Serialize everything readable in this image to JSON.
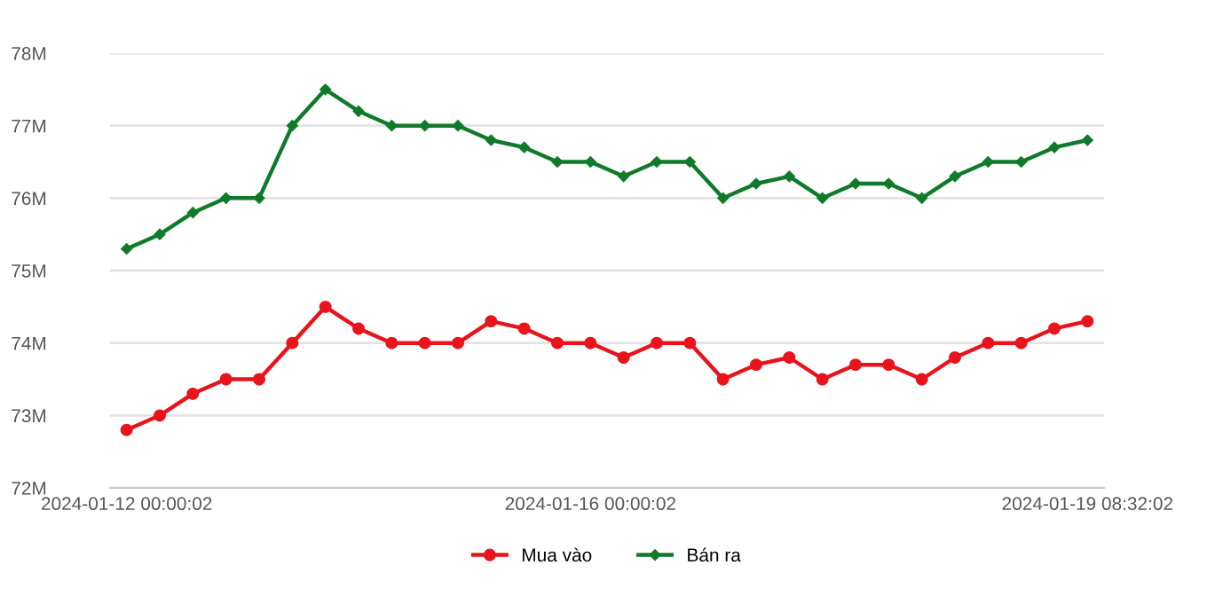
{
  "chart_data": {
    "type": "line",
    "categories": [
      "2024-01-12 00:00:02",
      null,
      null,
      null,
      null,
      null,
      null,
      null,
      null,
      null,
      null,
      null,
      null,
      null,
      "2024-01-16 00:00:02",
      null,
      null,
      null,
      null,
      null,
      null,
      null,
      null,
      null,
      null,
      null,
      null,
      null,
      null,
      "2024-01-19 08:32:02"
    ],
    "series": [
      {
        "name": "Mua vào",
        "color": "#e8131b",
        "marker": "circle",
        "values": [
          72.8,
          73.0,
          73.3,
          73.5,
          73.5,
          74.0,
          74.5,
          74.2,
          74.0,
          74.0,
          74.0,
          74.3,
          74.2,
          74.0,
          74.0,
          73.8,
          74.0,
          74.0,
          73.5,
          73.7,
          73.8,
          73.5,
          73.7,
          73.7,
          73.5,
          73.8,
          74.0,
          74.0,
          74.2,
          74.3
        ]
      },
      {
        "name": "Bán ra",
        "color": "#0f7a2a",
        "marker": "diamond",
        "values": [
          75.3,
          75.5,
          75.8,
          76.0,
          76.0,
          77.0,
          77.5,
          77.2,
          77.0,
          77.0,
          77.0,
          76.8,
          76.7,
          76.5,
          76.5,
          76.3,
          76.5,
          76.5,
          76.0,
          76.2,
          76.3,
          76.0,
          76.2,
          76.2,
          76.0,
          76.3,
          76.5,
          76.5,
          76.7,
          76.8
        ]
      }
    ],
    "ylim": [
      72,
      78
    ],
    "yticks": [
      {
        "value": 72,
        "label": "72M"
      },
      {
        "value": 73,
        "label": "73M"
      },
      {
        "value": 74,
        "label": "74M"
      },
      {
        "value": 75,
        "label": "75M"
      },
      {
        "value": 76,
        "label": "76M"
      },
      {
        "value": 77,
        "label": "77M"
      },
      {
        "value": 78,
        "label": "78M"
      }
    ],
    "grid": "y",
    "legend": "bottom"
  }
}
